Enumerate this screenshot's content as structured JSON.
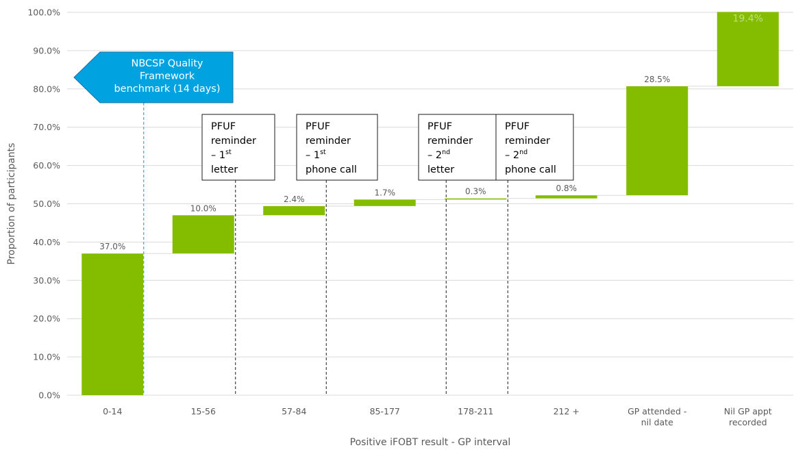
{
  "chart_data": {
    "type": "waterfall",
    "xlabel": "Positive iFOBT result - GP interval",
    "ylabel": "Proportion of participants",
    "ylim": [
      0,
      100
    ],
    "yticks": [
      0,
      10,
      20,
      30,
      40,
      50,
      60,
      70,
      80,
      90,
      100
    ],
    "ytick_labels": [
      "0.0%",
      "10.0%",
      "20.0%",
      "30.0%",
      "40.0%",
      "50.0%",
      "60.0%",
      "70.0%",
      "80.0%",
      "90.0%",
      "100.0%"
    ],
    "grid": true,
    "bar_color": "#84bd00",
    "categories": [
      [
        "0-14"
      ],
      [
        "15-56"
      ],
      [
        "57-84"
      ],
      [
        "85-177"
      ],
      [
        "178-211"
      ],
      [
        "212 +"
      ],
      [
        "GP attended -",
        "nil date"
      ],
      [
        "Nil GP appt",
        "recorded"
      ]
    ],
    "values": [
      37.0,
      10.0,
      2.4,
      1.7,
      0.3,
      0.8,
      28.5,
      19.4
    ],
    "data_labels": [
      "37.0%",
      "10.0%",
      "2.4%",
      "1.7%",
      "0.3%",
      "0.8%",
      "28.5%",
      "19.4%"
    ],
    "annotations": [
      {
        "lines": [
          [
            "PFUF",
            ""
          ],
          [
            "reminder",
            ""
          ],
          [
            "– 1",
            "st"
          ],
          [
            "letter",
            ""
          ]
        ],
        "marker_day": 56
      },
      {
        "lines": [
          [
            "PFUF",
            ""
          ],
          [
            "reminder",
            ""
          ],
          [
            "– 1",
            "st"
          ],
          [
            "phone call",
            ""
          ]
        ],
        "marker_day": 84
      },
      {
        "lines": [
          [
            "PFUF",
            ""
          ],
          [
            "reminder",
            ""
          ],
          [
            "– 2",
            "nd"
          ],
          [
            "letter",
            ""
          ]
        ],
        "marker_day": 178
      },
      {
        "lines": [
          [
            "PFUF",
            ""
          ],
          [
            "reminder",
            ""
          ],
          [
            "– 2",
            "nd"
          ],
          [
            "phone call",
            ""
          ]
        ],
        "marker_day": 211
      }
    ],
    "benchmark": {
      "lines": [
        "NBCSP Quality",
        "Framework",
        "benchmark (14 days)"
      ],
      "color": "#00a3e0",
      "marker_day": 14
    }
  }
}
